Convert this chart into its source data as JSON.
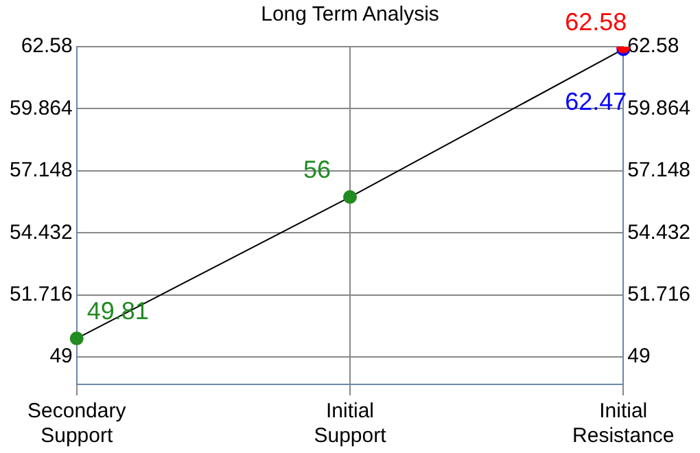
{
  "chart_data": {
    "type": "line",
    "title": "Long Term Analysis",
    "categories": [
      "Secondary Support",
      "Initial Support",
      "Initial Resistance"
    ],
    "series": [
      {
        "color": "#000000",
        "colors": [
          "#228b22",
          "#228b22",
          "#0000ff"
        ],
        "values": [
          49.81,
          56,
          62.47
        ]
      },
      {
        "type": "scatter",
        "color": "#ff0000",
        "values": [
          null,
          null,
          62.58
        ]
      }
    ],
    "ylim": [
      47.8,
      62.58
    ],
    "yticks": [
      49,
      51.716,
      54.432,
      57.148,
      59.864,
      62.58
    ],
    "y2lim": [
      47.8,
      62.58
    ],
    "y2ticks": [
      49,
      51.716,
      54.432,
      57.148,
      59.864,
      62.58
    ],
    "grid": true,
    "legend": false,
    "data_labels": true,
    "marker": "circle",
    "line_style": "solid"
  }
}
